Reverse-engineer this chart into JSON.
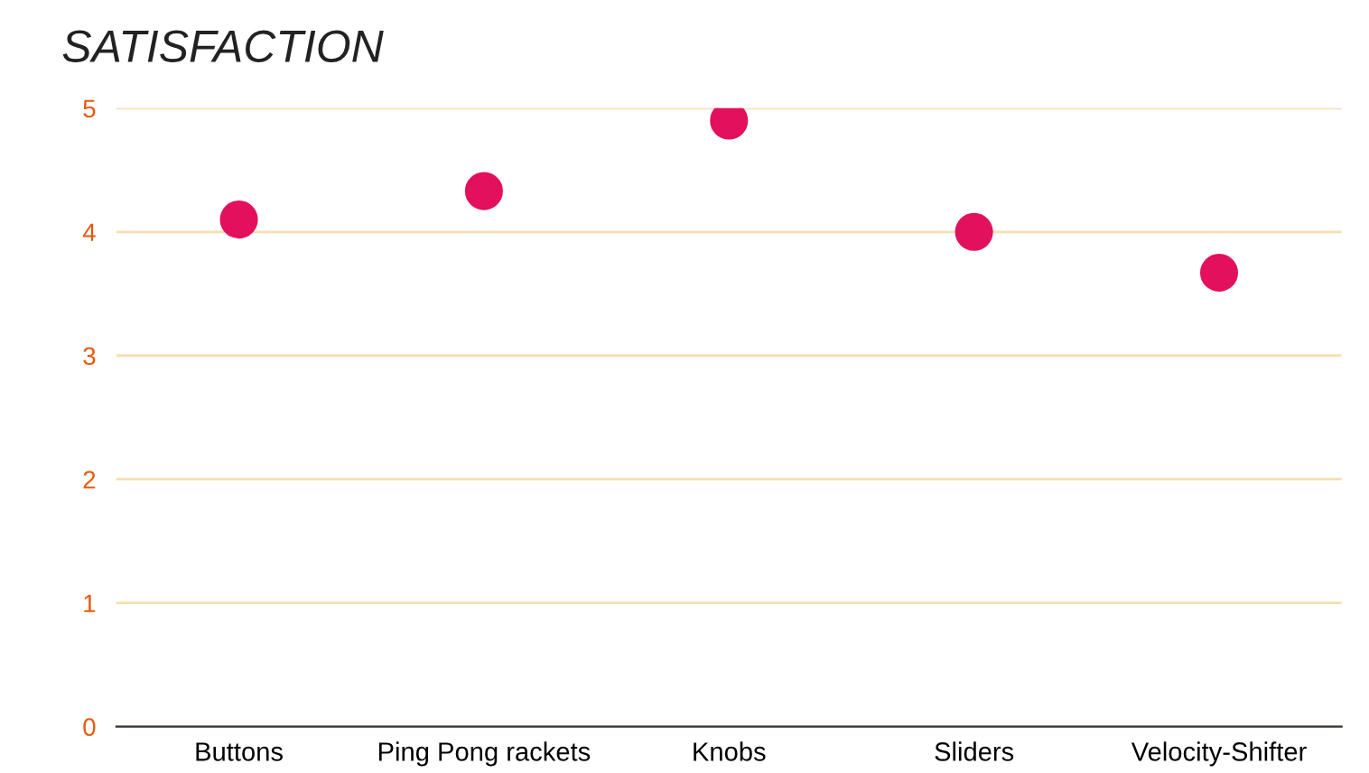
{
  "chart_data": {
    "type": "scatter",
    "title": "SATISFACTION",
    "categories": [
      "Buttons",
      "Ping Pong rackets",
      "Knobs",
      "Sliders",
      "Velocity-Shifter"
    ],
    "series": [
      {
        "color": "#e3105e",
        "values": [
          4.1,
          4.33,
          4.9,
          4.0,
          3.67
        ]
      }
    ],
    "ylim": [
      0,
      5
    ],
    "yticks": [
      0,
      1,
      2,
      3,
      4,
      5
    ],
    "grid": "y",
    "marker": "circle",
    "legend": false
  }
}
